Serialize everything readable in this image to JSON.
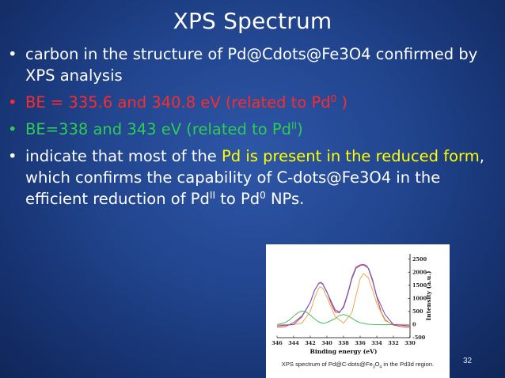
{
  "slide": {
    "title": "XPS Spectrum",
    "page_number": "32"
  },
  "bullets": [
    {
      "marker": "•",
      "text": "carbon in the structure of Pd@Cdots@Fe3O4 confirmed by XPS analysis"
    },
    {
      "marker": "•",
      "text_pre": "BE = 335.6 and 340.8 eV (related to Pd",
      "sup": "0",
      "text_post": " )"
    },
    {
      "marker": "•",
      "text_pre": "BE=338 and 343 eV (related to Pd",
      "sup": "II",
      "text_post": ")"
    },
    {
      "marker": "•",
      "part1": "indicate that most of the ",
      "highlight": "Pd is present in the reduced form",
      "part2": ", which confirms the capability of C-dots@Fe3O4 in the efficient reduction of Pd",
      "sup1": "II",
      "part3": " to Pd",
      "sup2": "0",
      "part4": " NPs."
    }
  ],
  "colors": {
    "background": "#21448d",
    "text": "#ffffff",
    "pd0": "#ff2a2a",
    "pdII": "#2ecc52",
    "highlight": "#ffff00"
  },
  "chart_data": {
    "type": "line",
    "xlabel": "Binding energy (eV)",
    "ylabel": "Intensity (a.u.)",
    "x_ticks": [
      346,
      344,
      342,
      340,
      338,
      336,
      334,
      332,
      330
    ],
    "y_ticks": [
      -500,
      0,
      500,
      1000,
      1500,
      2000,
      2500
    ],
    "xlim": [
      346,
      330
    ],
    "ylim": [
      -500,
      2700
    ],
    "caption_pre": "XPS spectrum of Pd@C-dots@Fe",
    "caption_sub1": "3",
    "caption_mid": "O",
    "caption_sub2": "4",
    "caption_post": " in the Pd3d region.",
    "series": [
      {
        "color": "#e03030",
        "x": [
          346,
          345,
          344,
          343,
          342,
          341.5,
          341,
          340.8,
          340.5,
          340,
          339.5,
          339,
          338.5,
          338,
          337.5,
          337,
          336.5,
          336,
          335.6,
          335.2,
          335,
          334.5,
          334,
          333.5,
          333,
          332,
          331,
          330
        ],
        "y": [
          -100,
          -80,
          80,
          330,
          850,
          1300,
          1570,
          1620,
          1560,
          1250,
          800,
          480,
          450,
          700,
          1200,
          1800,
          2200,
          2280,
          2300,
          2250,
          2120,
          1650,
          1050,
          500,
          180,
          -20,
          -80,
          -100
        ]
      },
      {
        "color": "#39b54a",
        "x": [
          346,
          345,
          344.5,
          344,
          343.5,
          343,
          342.5,
          342,
          341.5,
          341,
          340.5,
          340,
          339,
          338.5,
          338,
          337.5,
          337,
          336.5,
          336,
          335,
          334,
          333,
          332,
          330
        ],
        "y": [
          0,
          80,
          180,
          320,
          450,
          520,
          480,
          360,
          220,
          110,
          40,
          80,
          230,
          350,
          380,
          340,
          240,
          140,
          70,
          10,
          0,
          0,
          0,
          0
        ]
      },
      {
        "color": "#e6a23c",
        "x": [
          346,
          344,
          343,
          342,
          341.5,
          341,
          340.8,
          340.5,
          340,
          339,
          338,
          337,
          336.5,
          336,
          335.6,
          335,
          334.5,
          334,
          333,
          332,
          330
        ],
        "y": [
          0,
          0,
          60,
          500,
          1000,
          1380,
          1440,
          1380,
          1050,
          300,
          60,
          450,
          1100,
          1750,
          1950,
          1780,
          1300,
          800,
          150,
          10,
          0
        ]
      },
      {
        "color": "#6a5acd",
        "x": [
          346,
          344,
          343,
          342,
          341.5,
          341,
          340.8,
          340.5,
          340,
          339,
          338.5,
          338,
          337.5,
          337,
          336.5,
          336,
          335.6,
          335,
          334.5,
          334,
          333,
          332,
          330
        ],
        "y": [
          -50,
          0,
          300,
          850,
          1300,
          1560,
          1600,
          1540,
          1230,
          560,
          480,
          650,
          1150,
          1750,
          2150,
          2250,
          2280,
          2150,
          1700,
          1080,
          380,
          0,
          -50
        ]
      }
    ]
  }
}
